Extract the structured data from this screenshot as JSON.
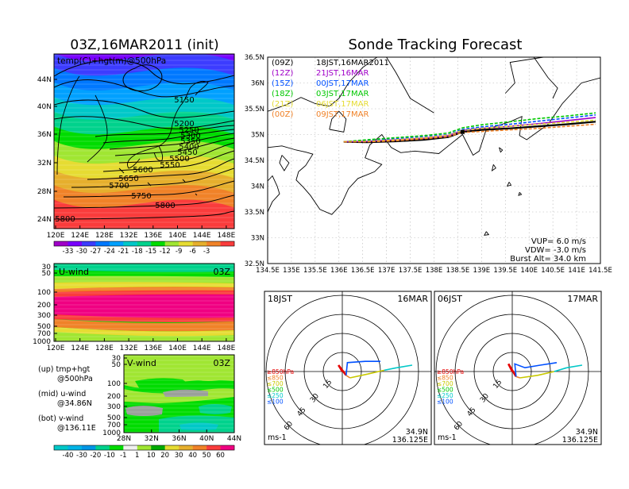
{
  "colors": {
    "temp_scale": [
      "#a000c8",
      "#7800ff",
      "#3c3cff",
      "#0078ff",
      "#00a0ff",
      "#00c8c8",
      "#00d28c",
      "#00dc00",
      "#a0e632",
      "#e6dc32",
      "#e6af2d",
      "#f08228",
      "#fa3c3c"
    ],
    "u_scale": [
      "#00c8c8",
      "#00d28c",
      "#00dc00",
      "#a0e632",
      "#e6dc32",
      "#e6af2d",
      "#f08228",
      "#fa3c3c",
      "#f00082"
    ],
    "track": {
      "09Z": "#000000",
      "12Z": "#a000c8",
      "15Z": "#0050ff",
      "18Z": "#00c800",
      "21Z": "#e6dc32",
      "00Z": "#f08228"
    },
    "hodo_levels": [
      "#e60000",
      "#f08228",
      "#c8c800",
      "#00c800",
      "#00c8c8",
      "#0050ff"
    ]
  },
  "left_panel": {
    "title": "03Z,16MAR2011 (init)",
    "map_label": "temp(C)+hgt(m)@500hPa",
    "lat_ticks": [
      "44N",
      "40N",
      "36N",
      "32N",
      "28N",
      "24N"
    ],
    "lon_ticks": [
      "120E",
      "124E",
      "128E",
      "132E",
      "136E",
      "140E",
      "144E",
      "148E"
    ],
    "height_labels": [
      "5150",
      "5200",
      "5250",
      "5300",
      "5350",
      "5400",
      "5450",
      "5500",
      "5550",
      "5600",
      "5650",
      "5700",
      "5750",
      "5800",
      "5800"
    ],
    "temp_colorbar": [
      "-33",
      "-30",
      "-27",
      "-24",
      "-21",
      "-18",
      "-15",
      "-12",
      "-9",
      "-6",
      "-3"
    ]
  },
  "u_panel": {
    "label": "U-wind",
    "time": "03Z",
    "pressure_ticks": [
      "30",
      "50",
      "100",
      "200",
      "300",
      "500",
      "700",
      "1000"
    ],
    "lon_ticks": [
      "120E",
      "124E",
      "128E",
      "132E",
      "136E",
      "140E",
      "144E",
      "148E"
    ]
  },
  "v_panel": {
    "label": "V-wind",
    "time": "03Z",
    "pressure_ticks": [
      "30",
      "50",
      "100",
      "200",
      "300",
      "500",
      "700",
      "1000"
    ],
    "lat_ticks": [
      "28N",
      "32N",
      "36N",
      "40N",
      "44N"
    ],
    "wind_colorbar": [
      "-40",
      "-30",
      "-20",
      "-10",
      "-1",
      "1",
      "10",
      "20",
      "30",
      "40",
      "50",
      "60"
    ]
  },
  "legend_notes": [
    {
      "title": "(up) tmp+hgt",
      "sub": "@500hPa"
    },
    {
      "title": "(mid) u-wind",
      "sub": "@34.86N"
    },
    {
      "title": "(bot) v-wind",
      "sub": "@136.11E"
    }
  ],
  "right_panel": {
    "title": "Sonde Tracking Forecast",
    "launches": [
      {
        "code": "(09Z)",
        "text": "18JST,16MAR2011"
      },
      {
        "code": "(12Z)",
        "text": "21JST,16MAR"
      },
      {
        "code": "(15Z)",
        "text": "00JST,17MAR"
      },
      {
        "code": "(18Z)",
        "text": "03JST,17MAR"
      },
      {
        "code": "(21Z)",
        "text": "06JST,17MAR"
      },
      {
        "code": "(00Z)",
        "text": "09JST,17MAR"
      }
    ],
    "params": [
      "VUP= 6.0 m/s",
      "VDW= -3.0 m/s",
      "Burst Alt= 34.0 km"
    ]
  },
  "chart_data": {
    "type": "line",
    "title": "Sonde Tracking Forecast",
    "xlim": [
      134.5,
      141.5
    ],
    "ylim": [
      32.5,
      36.5
    ],
    "x_ticks": [
      "134.5E",
      "135E",
      "135.5E",
      "136E",
      "136.5E",
      "137E",
      "137.5E",
      "138E",
      "138.5E",
      "139E",
      "139.5E",
      "140E",
      "140.5E",
      "141E",
      "141.5E"
    ],
    "y_ticks": [
      "36.5N",
      "36N",
      "35.5N",
      "35N",
      "34.5N",
      "34N",
      "33.5N",
      "33N",
      "32.5N"
    ],
    "series": [
      {
        "name": "(09Z)",
        "x": [
          136.1,
          136.6,
          137.2,
          137.8,
          138.3,
          138.6,
          139.0,
          139.6,
          140.2,
          140.8,
          141.4
        ],
        "y": [
          34.86,
          34.85,
          34.87,
          34.9,
          34.95,
          35.05,
          35.09,
          35.12,
          35.16,
          35.2,
          35.25
        ]
      },
      {
        "name": "(12Z)",
        "x": [
          136.1,
          136.6,
          137.2,
          137.8,
          138.3,
          138.6,
          139.0,
          139.6,
          140.2,
          140.8,
          141.4
        ],
        "y": [
          34.86,
          34.87,
          34.9,
          34.93,
          34.98,
          35.08,
          35.12,
          35.16,
          35.21,
          35.27,
          35.33
        ]
      },
      {
        "name": "(15Z)",
        "x": [
          136.1,
          136.6,
          137.2,
          137.8,
          138.3,
          138.6,
          139.0,
          139.6,
          140.2,
          140.8,
          141.4
        ],
        "y": [
          34.86,
          34.88,
          34.92,
          34.96,
          35.0,
          35.1,
          35.15,
          35.2,
          35.26,
          35.32,
          35.38
        ]
      },
      {
        "name": "(18Z)",
        "x": [
          136.1,
          136.6,
          137.2,
          137.8,
          138.3,
          138.6,
          139.0,
          139.6,
          140.2,
          140.8,
          141.4
        ],
        "y": [
          34.86,
          34.9,
          34.94,
          34.98,
          35.03,
          35.13,
          35.19,
          35.25,
          35.31,
          35.36,
          35.42
        ]
      },
      {
        "name": "(21Z)",
        "x": [
          136.1,
          136.6,
          137.2,
          137.8,
          138.3,
          138.6,
          139.0,
          139.6,
          140.2,
          140.8,
          141.4
        ],
        "y": [
          34.86,
          34.87,
          34.9,
          34.94,
          34.99,
          35.08,
          35.12,
          35.16,
          35.2,
          35.24,
          35.28
        ]
      },
      {
        "name": "(00Z)",
        "x": [
          136.1,
          136.6,
          137.2,
          137.8,
          138.3,
          138.6,
          139.0,
          139.6,
          140.2,
          140.8,
          141.4
        ],
        "y": [
          34.86,
          34.86,
          34.88,
          34.92,
          34.96,
          35.04,
          35.06,
          35.09,
          35.12,
          35.16,
          35.2
        ]
      }
    ]
  },
  "hodographs": [
    {
      "time": "18JST",
      "date": "16MAR",
      "loc_lat": "34.9N",
      "loc_lon": "136.125E",
      "unit": "ms-1",
      "ring_labels": [
        "15",
        "30",
        "45",
        "60"
      ],
      "levels": [
        "≥850hPa",
        "≤850",
        "≤700",
        "≤500",
        "≤250",
        "≤100"
      ],
      "trace": [
        [
          0,
          0
        ],
        [
          -3,
          5
        ],
        [
          3,
          -3
        ],
        [
          6,
          -5
        ],
        [
          20,
          -2
        ],
        [
          33,
          1
        ],
        [
          43,
          3
        ],
        [
          55,
          5
        ]
      ],
      "top": [
        [
          3,
          -3
        ],
        [
          4,
          7
        ],
        [
          18,
          8
        ],
        [
          30,
          8
        ]
      ]
    },
    {
      "time": "06JST",
      "date": "17MAR",
      "loc_lat": "34.9N",
      "loc_lon": "136.125E",
      "unit": "ms-1",
      "ring_labels": [
        "15",
        "30",
        "45",
        "60"
      ],
      "levels": [
        "≥850hPa",
        "≤850",
        "≤700",
        "≤500",
        "≤250",
        "≤100"
      ],
      "trace": [
        [
          0,
          0
        ],
        [
          -3,
          6
        ],
        [
          3,
          -4
        ],
        [
          6,
          -5
        ],
        [
          20,
          -3
        ],
        [
          33,
          0
        ],
        [
          43,
          3
        ],
        [
          55,
          5
        ]
      ],
      "top": [
        [
          3,
          -4
        ],
        [
          2,
          6
        ],
        [
          10,
          3
        ],
        [
          22,
          5
        ],
        [
          35,
          7
        ]
      ]
    }
  ]
}
